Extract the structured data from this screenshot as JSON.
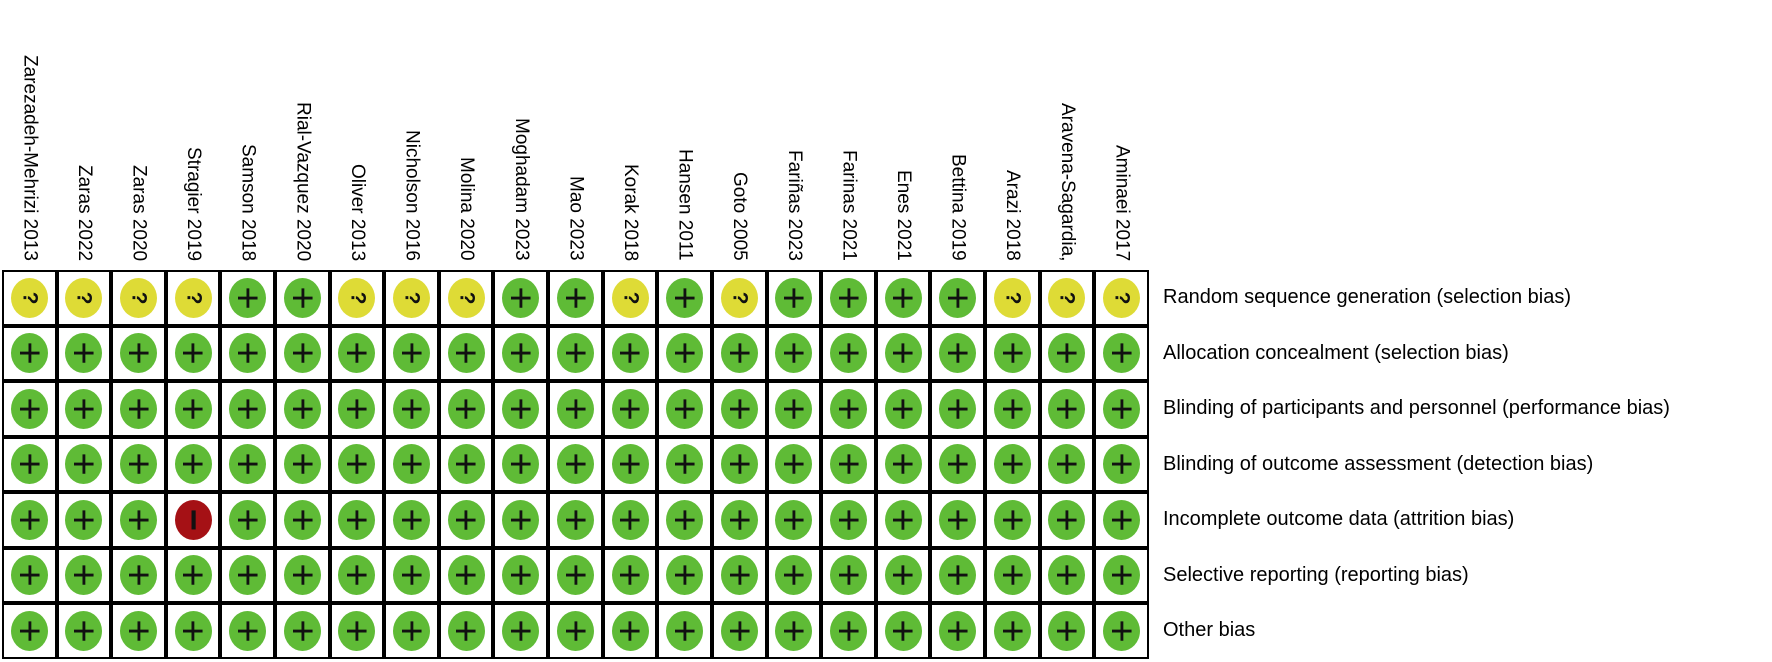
{
  "chart_data": {
    "type": "heatmap",
    "studies": [
      "Zarezadeh-Mehrizi 2013",
      "Zaras 2022",
      "Zaras 2020",
      "Stragier 2019",
      "Samson 2018",
      "Rial-Vazquez 2020",
      "Oliver 2013",
      "Nicholson 2016",
      "Molina 2020",
      "Moghadam 2023",
      "Mao 2023",
      "Korak 2018",
      "Hansen 2011",
      "Goto 2005",
      "Fariñas 2023",
      "Farinas 2021",
      "Enes 2021",
      "Bettina 2019",
      "Arazi 2018",
      "Aravena-Sagardia,",
      "Aminaei 2017"
    ],
    "criteria": [
      "Random sequence generation (selection bias)",
      "Allocation concealment (selection bias)",
      "Blinding of participants and personnel (performance bias)",
      "Blinding of outcome assessment (detection bias)",
      "Incomplete outcome data (attrition bias)",
      "Selective reporting (reporting bias)",
      "Other bias"
    ],
    "values": [
      [
        "?",
        "?",
        "?",
        "?",
        "+",
        "+",
        "?",
        "?",
        "?",
        "+",
        "+",
        "?",
        "+",
        "?",
        "+",
        "+",
        "+",
        "+",
        "?",
        "?",
        "?"
      ],
      [
        "+",
        "+",
        "+",
        "+",
        "+",
        "+",
        "+",
        "+",
        "+",
        "+",
        "+",
        "+",
        "+",
        "+",
        "+",
        "+",
        "+",
        "+",
        "+",
        "+",
        "+"
      ],
      [
        "+",
        "+",
        "+",
        "+",
        "+",
        "+",
        "+",
        "+",
        "+",
        "+",
        "+",
        "+",
        "+",
        "+",
        "+",
        "+",
        "+",
        "+",
        "+",
        "+",
        "+"
      ],
      [
        "+",
        "+",
        "+",
        "+",
        "+",
        "+",
        "+",
        "+",
        "+",
        "+",
        "+",
        "+",
        "+",
        "+",
        "+",
        "+",
        "+",
        "+",
        "+",
        "+",
        "+"
      ],
      [
        "+",
        "+",
        "+",
        "-",
        "+",
        "+",
        "+",
        "+",
        "+",
        "+",
        "+",
        "+",
        "+",
        "+",
        "+",
        "+",
        "+",
        "+",
        "+",
        "+",
        "+"
      ],
      [
        "+",
        "+",
        "+",
        "+",
        "+",
        "+",
        "+",
        "+",
        "+",
        "+",
        "+",
        "+",
        "+",
        "+",
        "+",
        "+",
        "+",
        "+",
        "+",
        "+",
        "+"
      ],
      [
        "+",
        "+",
        "+",
        "+",
        "+",
        "+",
        "+",
        "+",
        "+",
        "+",
        "+",
        "+",
        "+",
        "+",
        "+",
        "+",
        "+",
        "+",
        "+",
        "+",
        "+"
      ]
    ],
    "symbol_colors": {
      "+": "#5FBB36",
      "?": "#DEDB36",
      "-": "#A51115"
    },
    "display_symbols": {
      "+": "+",
      "?": "?",
      "-": "−"
    },
    "layout": {
      "grid_border_color": "#000000",
      "cell_background": "#ffffff"
    }
  }
}
